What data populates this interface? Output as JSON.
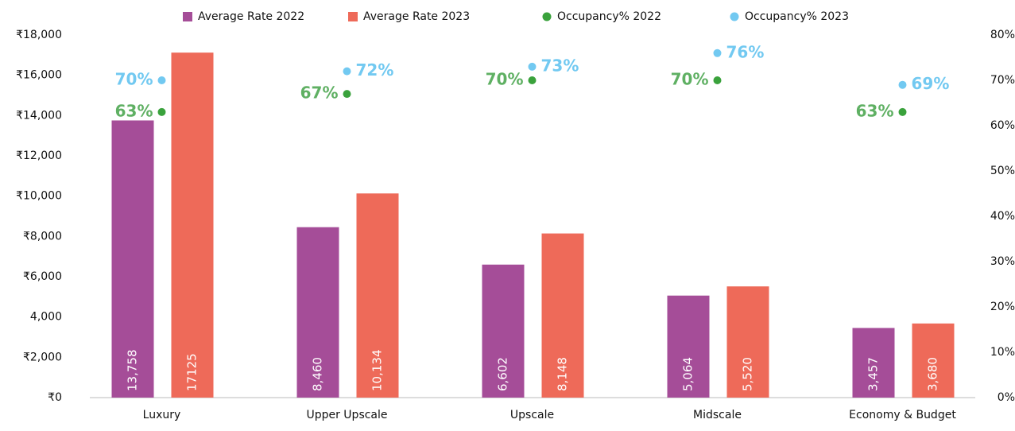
{
  "chart_data": {
    "type": "bar_dot",
    "categories": [
      "Luxury",
      "Upper Upscale",
      "Upscale",
      "Midscale",
      "Economy & Budget"
    ],
    "series": [
      {
        "name": "Average Rate 2022",
        "color": "#a54d98",
        "values": [
          13758,
          8460,
          6602,
          5064,
          3457
        ],
        "value_labels": [
          "13,758",
          "8,460",
          "6,602",
          "5,064",
          "3,457"
        ]
      },
      {
        "name": "Average Rate 2023",
        "color": "#ee6a59",
        "values": [
          17125,
          10134,
          8148,
          5520,
          3680
        ],
        "value_labels": [
          "17125",
          "10,134",
          "8,148",
          "5,520",
          "3,680"
        ]
      },
      {
        "name": "Occupancy% 2022",
        "color": "#3aa23c",
        "axis": "y2",
        "label_color": "#5fb063",
        "values": [
          63,
          67,
          70,
          70,
          63
        ],
        "value_labels": [
          "63%",
          "67%",
          "70%",
          "70%",
          "63%"
        ]
      },
      {
        "name": "Occupancy% 2023",
        "color": "#72c9f1",
        "axis": "y2",
        "label_color": "#72c9f1",
        "values": [
          70,
          72,
          73,
          76,
          69
        ],
        "value_labels": [
          "70%",
          "72%",
          "73%",
          "76%",
          "69%"
        ]
      }
    ],
    "ylim": [
      0,
      18000
    ],
    "yticks": [
      {
        "value": 0,
        "label": "₹0"
      },
      {
        "value": 2000,
        "label": "₹2,000"
      },
      {
        "value": 4000,
        "label": "4,000"
      },
      {
        "value": 6000,
        "label": "₹6,000"
      },
      {
        "value": 8000,
        "label": "₹8,000"
      },
      {
        "value": 10000,
        "label": "₹10,000"
      },
      {
        "value": 12000,
        "label": "₹12,000"
      },
      {
        "value": 14000,
        "label": "₹14,000"
      },
      {
        "value": 16000,
        "label": "₹16,000"
      },
      {
        "value": 18000,
        "label": "₹18,000"
      }
    ],
    "y2lim": [
      0,
      80
    ],
    "y2ticks": [
      {
        "value": 0,
        "label": "0%"
      },
      {
        "value": 10,
        "label": "10%"
      },
      {
        "value": 20,
        "label": "20%"
      },
      {
        "value": 30,
        "label": "30%"
      },
      {
        "value": 40,
        "label": "40%"
      },
      {
        "value": 50,
        "label": "50%"
      },
      {
        "value": 60,
        "label": "60%"
      },
      {
        "value": 70,
        "label": "70%"
      },
      {
        "value": 80,
        "label": "80%"
      }
    ],
    "legend": "top"
  }
}
